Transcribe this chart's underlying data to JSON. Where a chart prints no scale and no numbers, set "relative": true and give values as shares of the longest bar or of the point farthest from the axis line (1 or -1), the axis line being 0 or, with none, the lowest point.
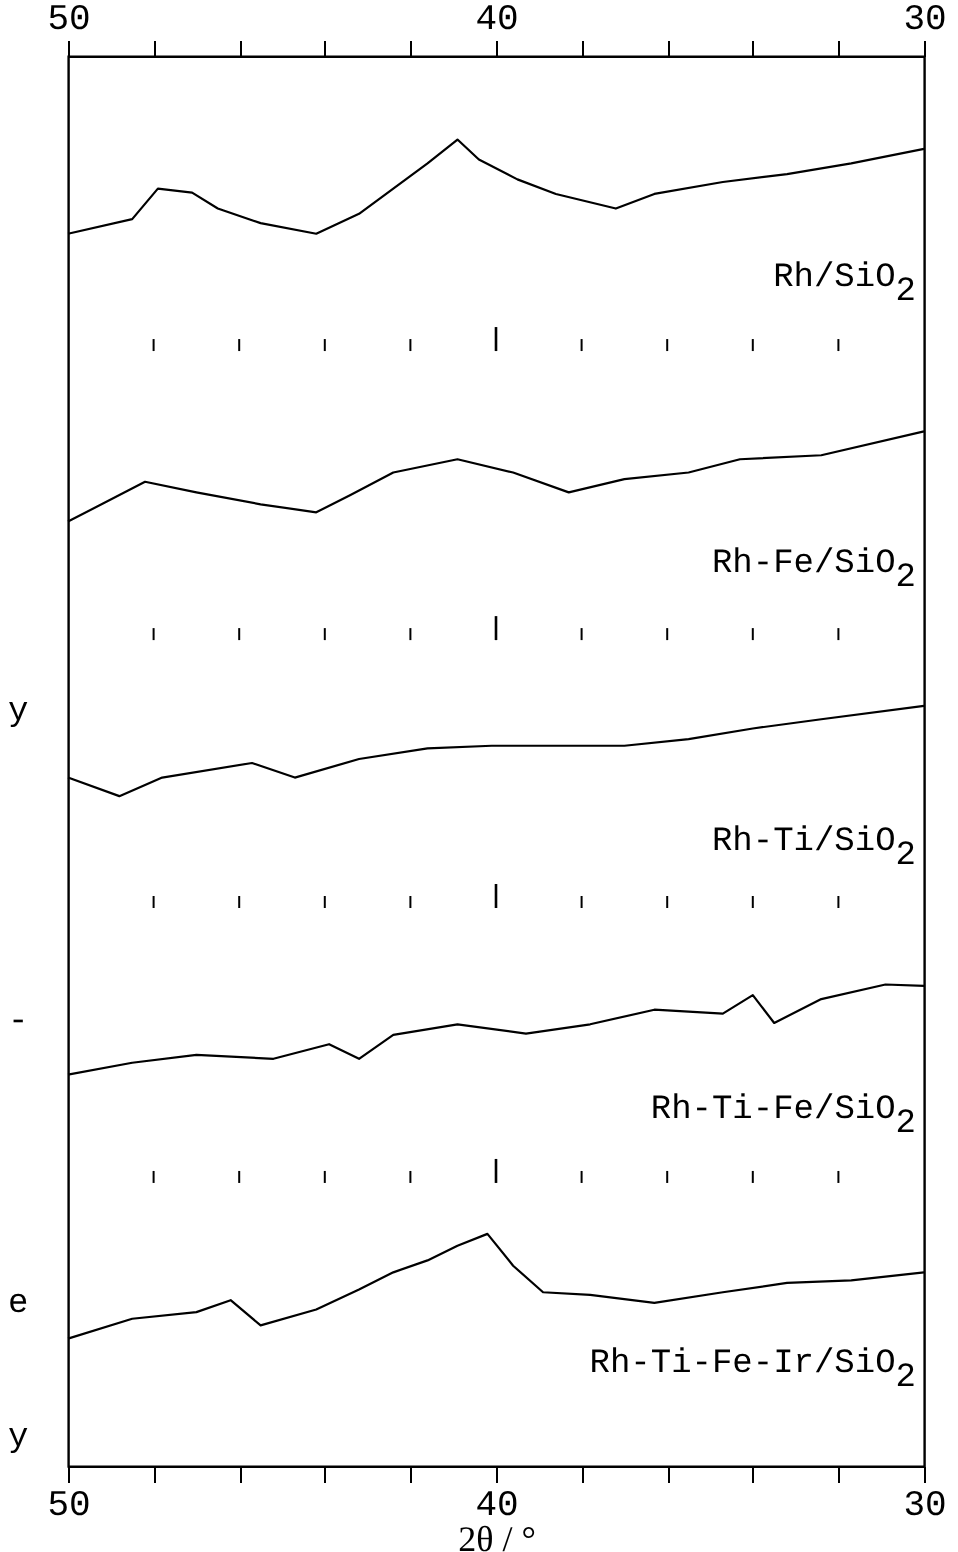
{
  "chart_data": {
    "type": "line",
    "relative": true,
    "xlabel": "2θ / °",
    "xlim": [
      50,
      30
    ],
    "x2lim": [
      50,
      30
    ],
    "xticks": [
      50,
      {
        "value": 48,
        "label": null
      },
      {
        "value": 46,
        "label": null
      },
      {
        "value": 44,
        "label": null
      },
      {
        "value": 42,
        "label": null
      },
      40,
      {
        "value": 38,
        "label": null
      },
      {
        "value": 36,
        "label": null
      },
      {
        "value": 34,
        "label": null
      },
      {
        "value": 32,
        "label": null
      },
      30
    ],
    "x2ticks": [
      50,
      {
        "value": 48,
        "label": null
      },
      {
        "value": 46,
        "label": null
      },
      {
        "value": 44,
        "label": null
      },
      {
        "value": 42,
        "label": null
      },
      40,
      {
        "value": 38,
        "label": null
      },
      {
        "value": 36,
        "label": null
      },
      {
        "value": 34,
        "label": null
      },
      {
        "value": 32,
        "label": null
      },
      30
    ],
    "grid": false,
    "marker": "none",
    "line_style": "solid",
    "annotations": [
      "y",
      "-",
      "e",
      "y"
    ],
    "series": [
      {
        "name": "Rh/SiO$_{2}$",
        "color": "#000000",
        "x": [
          50,
          48.5,
          47.9,
          47.1,
          46.5,
          45.5,
          44.2,
          43.2,
          42.4,
          41.6,
          40.9,
          40.4,
          39.5,
          38.6,
          37.2,
          36.3,
          34.7,
          33.2,
          31.7,
          30
        ],
        "values": [
          0.929,
          0.94,
          0.963,
          0.96,
          0.948,
          0.937,
          0.929,
          0.944,
          0.963,
          0.982,
          1,
          0.985,
          0.97,
          0.959,
          0.948,
          0.959,
          0.968,
          0.974,
          0.982,
          0.993
        ]
      },
      {
        "name": "Rh-Fe/SiO$_{2}$",
        "color": "#000000",
        "x": [
          50,
          48.2,
          47,
          45.5,
          44.2,
          43.4,
          42.4,
          40.9,
          39.6,
          38.3,
          37,
          35.5,
          34.3,
          32.4,
          30
        ],
        "values": [
          0.712,
          0.742,
          0.734,
          0.725,
          0.719,
          0.732,
          0.749,
          0.759,
          0.749,
          0.734,
          0.744,
          0.749,
          0.759,
          0.762,
          0.78
        ]
      },
      {
        "name": "Rh-Ti/SiO$_{2}$",
        "color": "#000000",
        "x": [
          50,
          48.8,
          47.8,
          45.7,
          44.7,
          43.2,
          41.6,
          40.1,
          38.6,
          37,
          35.5,
          34,
          32.4,
          30
        ],
        "values": [
          0.519,
          0.505,
          0.519,
          0.53,
          0.519,
          0.533,
          0.541,
          0.543,
          0.543,
          0.543,
          0.548,
          0.556,
          0.563,
          0.573
        ]
      },
      {
        "name": "Rh-Ti-Fe/SiO$_{2}$",
        "color": "#000000",
        "x": [
          50,
          48.5,
          47,
          45.2,
          43.9,
          43.2,
          42.4,
          40.9,
          39.3,
          37.8,
          36.3,
          34.7,
          34,
          33.5,
          32.4,
          30.9,
          30
        ],
        "values": [
          0.295,
          0.304,
          0.31,
          0.307,
          0.318,
          0.307,
          0.325,
          0.333,
          0.326,
          0.333,
          0.344,
          0.341,
          0.355,
          0.334,
          0.352,
          0.363,
          0.362
        ]
      },
      {
        "name": "Rh-Ti-Fe-Ir/SiO$_{2}$",
        "color": "#000000",
        "x": [
          50,
          48.5,
          47,
          46.2,
          45.5,
          44.2,
          43.2,
          42.4,
          41.6,
          40.9,
          40.2,
          39.6,
          38.9,
          37.8,
          36.3,
          34.7,
          33.2,
          31.7,
          30
        ],
        "values": [
          0.096,
          0.111,
          0.116,
          0.125,
          0.106,
          0.118,
          0.133,
          0.146,
          0.155,
          0.166,
          0.175,
          0.151,
          0.131,
          0.129,
          0.123,
          0.131,
          0.138,
          0.14,
          0.146
        ]
      }
    ]
  }
}
